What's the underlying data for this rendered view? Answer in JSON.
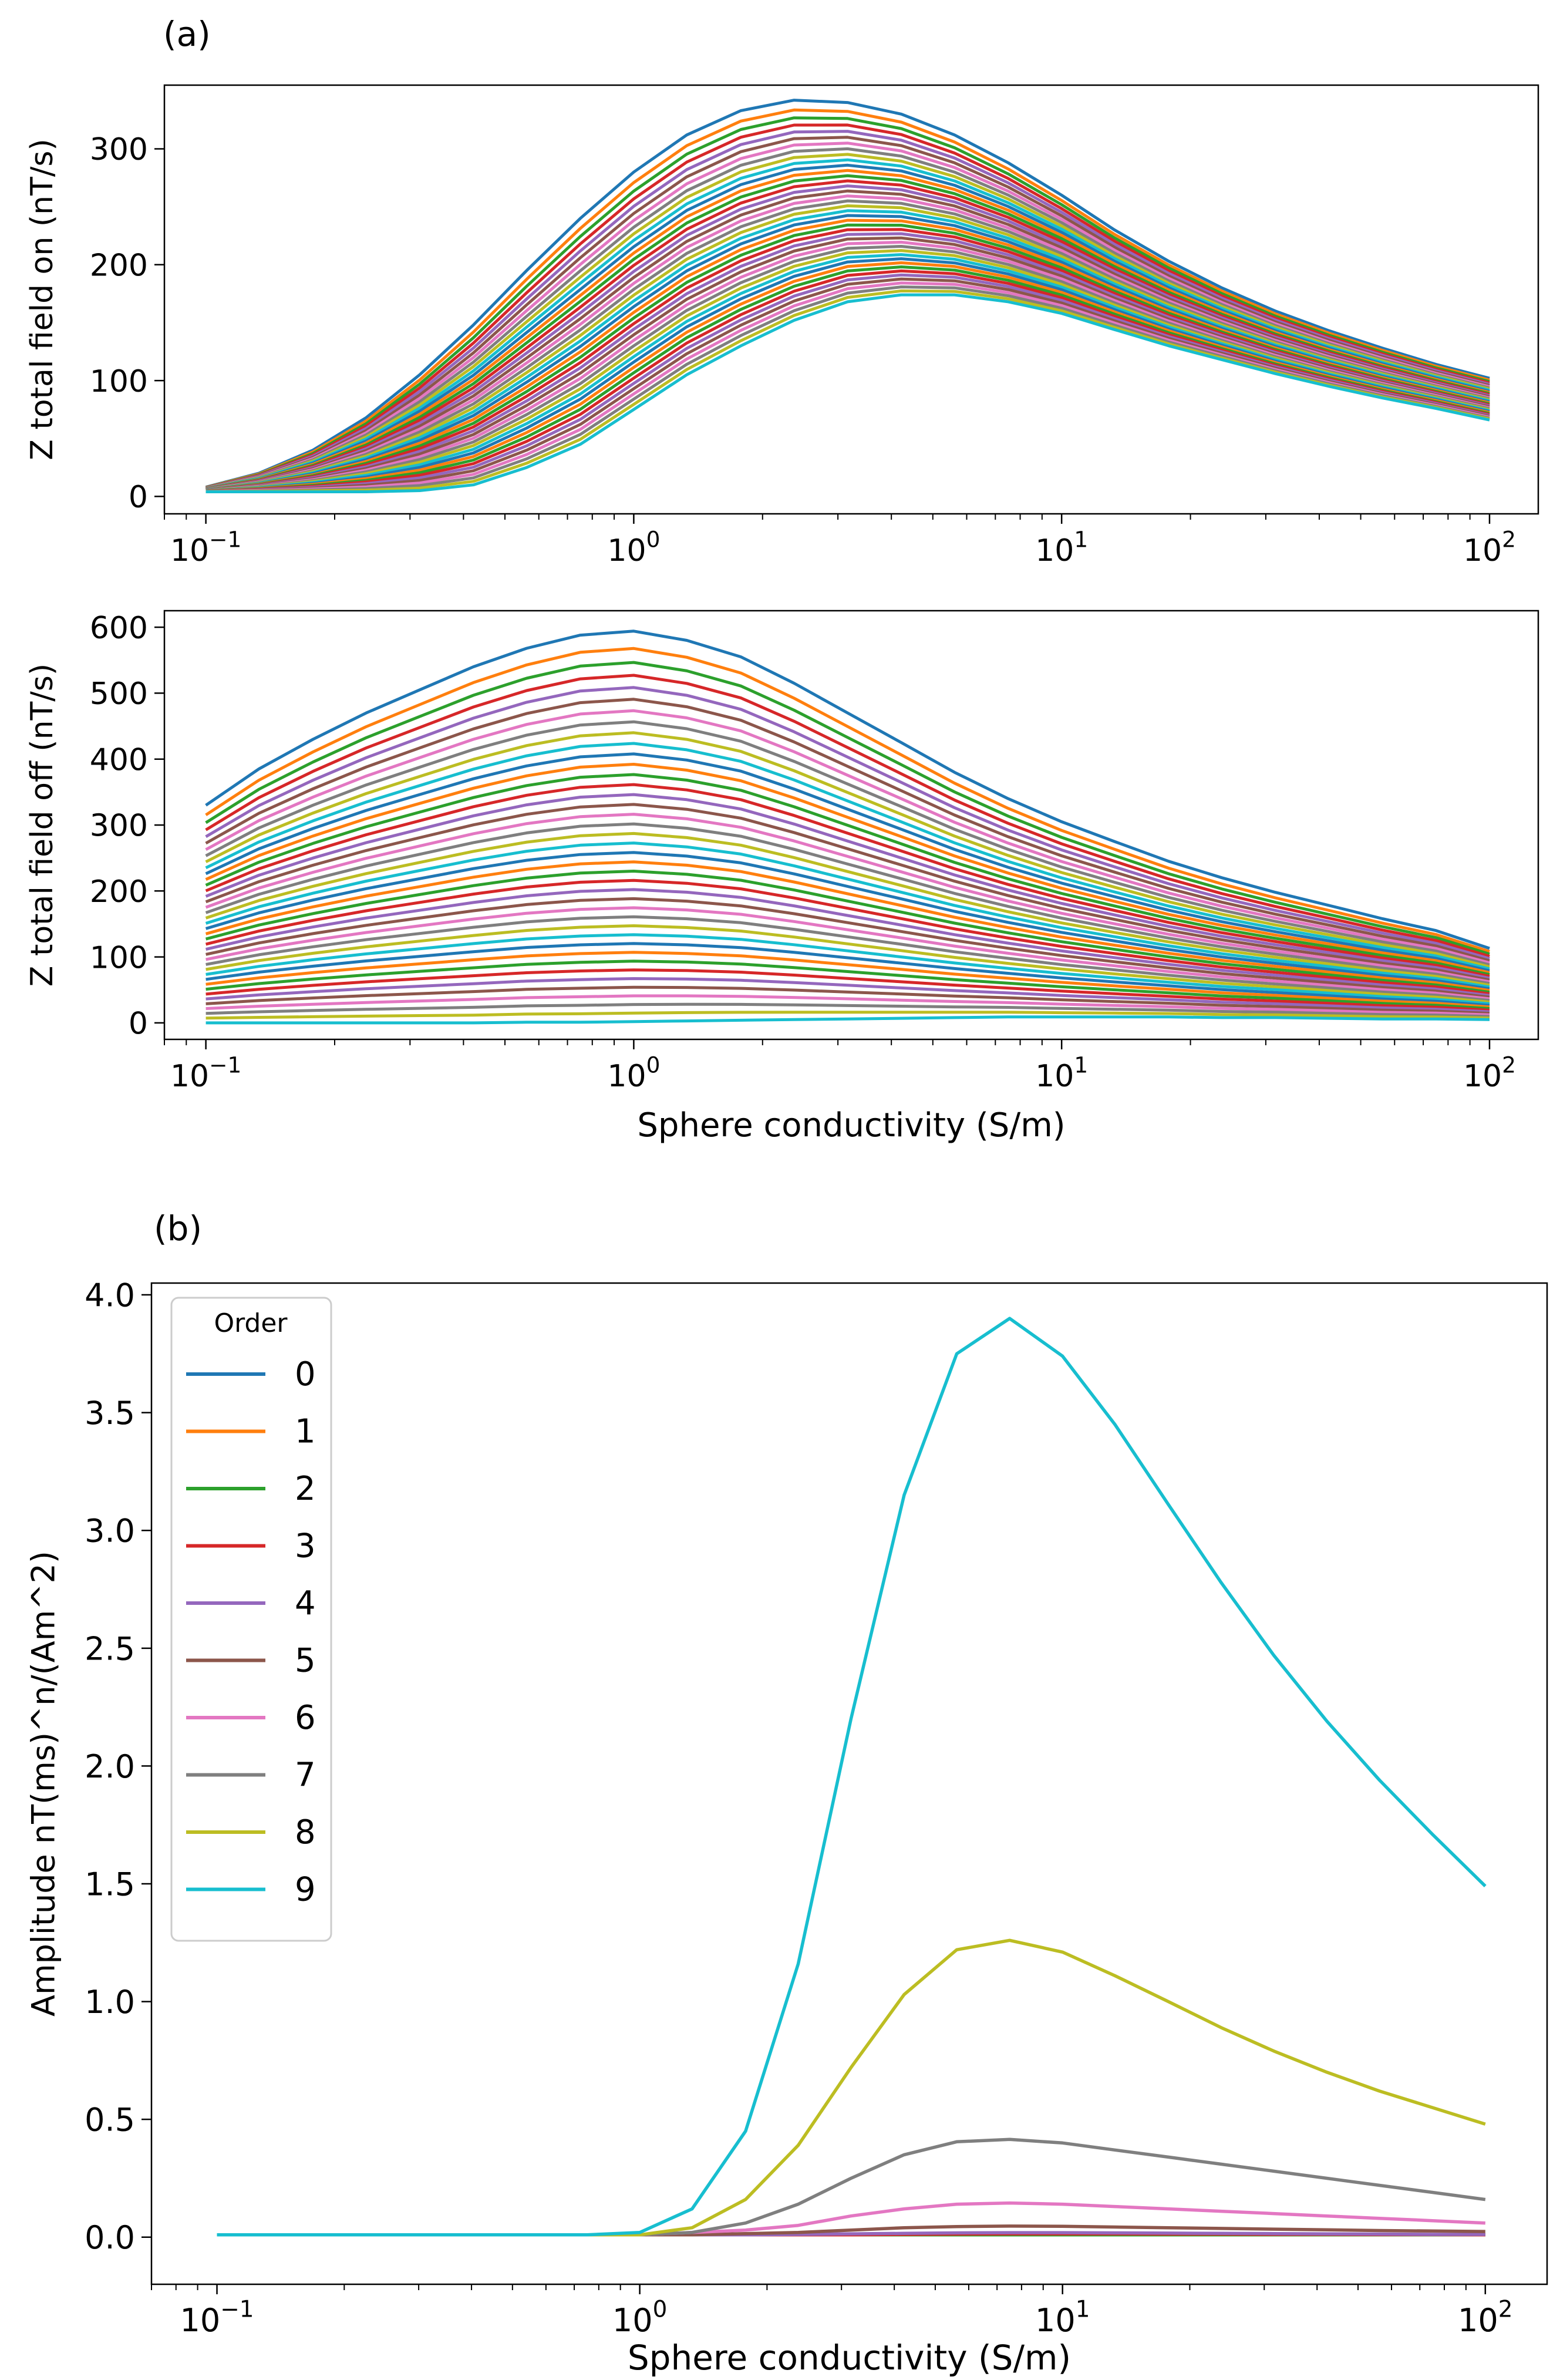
{
  "figure": {
    "panel_a_label": "(a)",
    "panel_b_label": "(b)"
  },
  "chart_data": [
    {
      "type": "line",
      "title": "",
      "xlabel": "",
      "ylabel": "Z total field on (nT/s)",
      "xscale": "log",
      "xlim": [
        0.08,
        130
      ],
      "ylim": [
        -15,
        355
      ],
      "xticks": [
        0.1,
        1,
        10,
        100
      ],
      "xtick_labels": [
        [
          "10",
          "−1"
        ],
        [
          "10",
          "0"
        ],
        [
          "10",
          "1"
        ],
        [
          "10",
          "2"
        ]
      ],
      "yticks": [
        0,
        100,
        200,
        300
      ],
      "ytick_labels": [
        "0",
        "100",
        "200",
        "300"
      ],
      "n_series": 40,
      "x": [
        0.1,
        0.133,
        0.178,
        0.237,
        0.316,
        0.422,
        0.562,
        0.75,
        1.0,
        1.33,
        1.78,
        2.37,
        3.16,
        4.22,
        5.62,
        7.5,
        10,
        13.3,
        17.8,
        23.7,
        31.6,
        42.2,
        56.2,
        75,
        100
      ],
      "series_first": [
        8,
        20,
        40,
        68,
        105,
        148,
        195,
        240,
        280,
        312,
        333,
        342,
        340,
        330,
        312,
        288,
        260,
        230,
        203,
        180,
        160,
        143,
        128,
        114,
        102
      ],
      "series_last": [
        4,
        4,
        4,
        4,
        5,
        10,
        25,
        45,
        75,
        105,
        130,
        152,
        168,
        174,
        174,
        168,
        158,
        144,
        130,
        118,
        106,
        95,
        85,
        76,
        66
      ],
      "palette": [
        "#1f77b4",
        "#ff7f0e",
        "#2ca02c",
        "#d62728",
        "#9467bd",
        "#8c564b",
        "#e377c2",
        "#7f7f7f",
        "#bcbd22",
        "#17becf"
      ]
    },
    {
      "type": "line",
      "title": "",
      "xlabel": "Sphere conductivity (S/m)",
      "ylabel": "Z total field off (nT/s)",
      "xscale": "log",
      "xlim": [
        0.08,
        130
      ],
      "ylim": [
        -25,
        625
      ],
      "xticks": [
        0.1,
        1,
        10,
        100
      ],
      "xtick_labels": [
        [
          "10",
          "−1"
        ],
        [
          "10",
          "0"
        ],
        [
          "10",
          "1"
        ],
        [
          "10",
          "2"
        ]
      ],
      "yticks": [
        0,
        100,
        200,
        300,
        400,
        500,
        600
      ],
      "ytick_labels": [
        "0",
        "100",
        "200",
        "300",
        "400",
        "500",
        "600"
      ],
      "n_series": 40,
      "x": [
        0.1,
        0.133,
        0.178,
        0.237,
        0.316,
        0.422,
        0.562,
        0.75,
        1.0,
        1.33,
        1.78,
        2.37,
        3.16,
        4.22,
        5.62,
        7.5,
        10,
        13.3,
        17.8,
        23.7,
        31.6,
        42.2,
        56.2,
        75,
        100
      ],
      "series_first": [
        330,
        385,
        430,
        470,
        505,
        540,
        568,
        588,
        594,
        580,
        555,
        515,
        470,
        425,
        380,
        340,
        305,
        275,
        245,
        220,
        198,
        178,
        158,
        140,
        113
      ],
      "series_last": [
        0,
        0,
        0,
        0,
        0,
        0,
        1,
        1,
        2,
        3,
        4,
        5,
        6,
        7,
        8,
        9,
        9,
        9,
        9,
        8,
        8,
        7,
        6,
        6,
        5
      ],
      "palette": [
        "#1f77b4",
        "#ff7f0e",
        "#2ca02c",
        "#d62728",
        "#9467bd",
        "#8c564b",
        "#e377c2",
        "#7f7f7f",
        "#bcbd22",
        "#17becf"
      ]
    },
    {
      "type": "line",
      "title": "",
      "xlabel": "Sphere conductivity (S/m)",
      "ylabel": "Amplitude nT(ms)^n/(Am^2)",
      "xscale": "log",
      "xlim": [
        0.07,
        140
      ],
      "ylim": [
        -0.2,
        4.05
      ],
      "xticks": [
        0.1,
        1,
        10,
        100
      ],
      "xtick_labels": [
        [
          "10",
          "−1"
        ],
        [
          "10",
          "0"
        ],
        [
          "10",
          "1"
        ],
        [
          "10",
          "2"
        ]
      ],
      "yticks": [
        0.0,
        0.5,
        1.0,
        1.5,
        2.0,
        2.5,
        3.0,
        3.5,
        4.0
      ],
      "ytick_labels": [
        "0.0",
        "0.5",
        "1.0",
        "1.5",
        "2.0",
        "2.5",
        "3.0",
        "3.5",
        "4.0"
      ],
      "legend": {
        "title": "Order",
        "position": "top-left"
      },
      "x": [
        0.1,
        0.133,
        0.178,
        0.237,
        0.316,
        0.422,
        0.562,
        0.75,
        1.0,
        1.33,
        1.78,
        2.37,
        3.16,
        4.22,
        5.62,
        7.5,
        10,
        13.3,
        17.8,
        23.7,
        31.6,
        42.2,
        56.2,
        75,
        100
      ],
      "series": [
        {
          "name": "0",
          "color": "#1f77b4",
          "values": [
            0.01,
            0.01,
            0.01,
            0.01,
            0.01,
            0.01,
            0.01,
            0.01,
            0.01,
            0.01,
            0.01,
            0.01,
            0.01,
            0.01,
            0.01,
            0.01,
            0.01,
            0.01,
            0.01,
            0.01,
            0.01,
            0.01,
            0.01,
            0.01,
            0.01
          ]
        },
        {
          "name": "1",
          "color": "#ff7f0e",
          "values": [
            0.01,
            0.01,
            0.01,
            0.01,
            0.01,
            0.01,
            0.01,
            0.01,
            0.01,
            0.01,
            0.01,
            0.01,
            0.01,
            0.01,
            0.01,
            0.01,
            0.01,
            0.01,
            0.01,
            0.01,
            0.01,
            0.01,
            0.01,
            0.01,
            0.01
          ]
        },
        {
          "name": "2",
          "color": "#2ca02c",
          "values": [
            0.01,
            0.01,
            0.01,
            0.01,
            0.01,
            0.01,
            0.01,
            0.01,
            0.01,
            0.01,
            0.01,
            0.01,
            0.01,
            0.01,
            0.01,
            0.01,
            0.01,
            0.01,
            0.01,
            0.01,
            0.01,
            0.01,
            0.01,
            0.01,
            0.01
          ]
        },
        {
          "name": "3",
          "color": "#d62728",
          "values": [
            0.01,
            0.01,
            0.01,
            0.01,
            0.01,
            0.01,
            0.01,
            0.01,
            0.01,
            0.01,
            0.01,
            0.01,
            0.01,
            0.012,
            0.013,
            0.014,
            0.014,
            0.014,
            0.013,
            0.013,
            0.012,
            0.012,
            0.011,
            0.011,
            0.01
          ]
        },
        {
          "name": "4",
          "color": "#9467bd",
          "values": [
            0.01,
            0.01,
            0.01,
            0.01,
            0.01,
            0.01,
            0.01,
            0.01,
            0.01,
            0.01,
            0.01,
            0.012,
            0.014,
            0.016,
            0.018,
            0.019,
            0.019,
            0.018,
            0.017,
            0.016,
            0.015,
            0.014,
            0.013,
            0.012,
            0.012
          ]
        },
        {
          "name": "5",
          "color": "#8c564b",
          "values": [
            0.01,
            0.01,
            0.01,
            0.01,
            0.01,
            0.01,
            0.01,
            0.01,
            0.01,
            0.01,
            0.015,
            0.02,
            0.03,
            0.04,
            0.045,
            0.047,
            0.046,
            0.043,
            0.04,
            0.037,
            0.034,
            0.031,
            0.028,
            0.026,
            0.024
          ]
        },
        {
          "name": "6",
          "color": "#e377c2",
          "values": [
            0.01,
            0.01,
            0.01,
            0.01,
            0.01,
            0.01,
            0.01,
            0.01,
            0.01,
            0.02,
            0.03,
            0.05,
            0.09,
            0.12,
            0.14,
            0.145,
            0.14,
            0.13,
            0.12,
            0.11,
            0.1,
            0.09,
            0.08,
            0.07,
            0.06
          ]
        },
        {
          "name": "7",
          "color": "#7f7f7f",
          "values": [
            0.01,
            0.01,
            0.01,
            0.01,
            0.01,
            0.01,
            0.01,
            0.01,
            0.01,
            0.02,
            0.06,
            0.14,
            0.25,
            0.35,
            0.405,
            0.415,
            0.4,
            0.37,
            0.34,
            0.31,
            0.28,
            0.25,
            0.22,
            0.19,
            0.16
          ]
        },
        {
          "name": "8",
          "color": "#bcbd22",
          "values": [
            0.01,
            0.01,
            0.01,
            0.01,
            0.01,
            0.01,
            0.01,
            0.01,
            0.01,
            0.04,
            0.16,
            0.39,
            0.72,
            1.03,
            1.22,
            1.26,
            1.21,
            1.11,
            1.0,
            0.89,
            0.79,
            0.7,
            0.62,
            0.55,
            0.48
          ]
        },
        {
          "name": "9",
          "color": "#17becf",
          "values": [
            0.01,
            0.01,
            0.01,
            0.01,
            0.01,
            0.01,
            0.01,
            0.01,
            0.02,
            0.12,
            0.45,
            1.16,
            2.2,
            3.15,
            3.75,
            3.9,
            3.74,
            3.45,
            3.11,
            2.78,
            2.47,
            2.19,
            1.94,
            1.71,
            1.49
          ]
        }
      ]
    }
  ]
}
